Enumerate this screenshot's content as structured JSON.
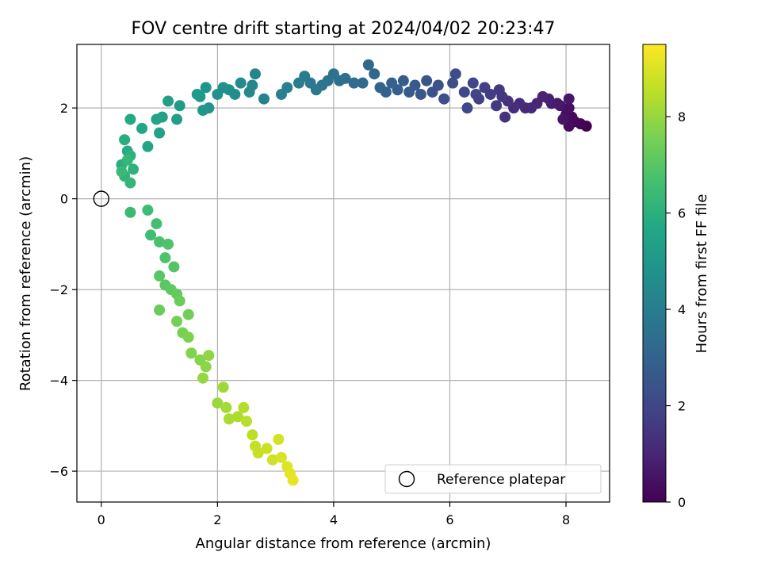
{
  "chart_data": {
    "type": "scatter",
    "title": "FOV centre drift starting at 2024/04/02 20:23:47",
    "xlabel": "Angular distance from reference (arcmin)",
    "ylabel": "Rotation from reference (arcmin)",
    "xlim": [
      -0.42,
      8.75
    ],
    "ylim": [
      -6.68,
      3.4
    ],
    "xticks": [
      0,
      2,
      4,
      6,
      8
    ],
    "xtick_labels": [
      "0",
      "2",
      "4",
      "6",
      "8"
    ],
    "yticks": [
      2,
      0,
      -2,
      -4,
      -6
    ],
    "ytick_labels": [
      "2",
      "0",
      "−2",
      "−4",
      "−6"
    ],
    "grid": true,
    "colormap": "viridis",
    "colorbar": {
      "label": "Hours from first FF file",
      "range": [
        0,
        9.5
      ],
      "ticks": [
        0,
        2,
        4,
        6,
        8
      ],
      "tick_labels": [
        "0",
        "2",
        "4",
        "6",
        "8"
      ]
    },
    "legend": {
      "position": "bottom-right",
      "entries": [
        "Reference platepar"
      ]
    },
    "reference_point": {
      "x": 0,
      "y": 0,
      "label": "Reference platepar"
    },
    "series": [
      {
        "color_by": "hours",
        "points": [
          [
            8.35,
            1.6,
            0.0
          ],
          [
            8.25,
            1.65,
            0.07
          ],
          [
            8.15,
            1.7,
            0.14
          ],
          [
            8.1,
            1.8,
            0.21
          ],
          [
            8.05,
            1.6,
            0.28
          ],
          [
            8.0,
            1.85,
            0.35
          ],
          [
            8.05,
            2.0,
            0.42
          ],
          [
            7.95,
            1.75,
            0.49
          ],
          [
            7.9,
            2.05,
            0.56
          ],
          [
            8.05,
            2.2,
            0.63
          ],
          [
            7.85,
            2.1,
            0.7
          ],
          [
            7.75,
            2.1,
            0.77
          ],
          [
            7.7,
            2.2,
            0.84
          ],
          [
            7.6,
            2.25,
            0.91
          ],
          [
            7.5,
            2.1,
            0.98
          ],
          [
            7.4,
            2.0,
            1.05
          ],
          [
            7.3,
            2.0,
            1.12
          ],
          [
            7.2,
            2.1,
            1.19
          ],
          [
            7.1,
            2.0,
            1.26
          ],
          [
            7.0,
            2.15,
            1.33
          ],
          [
            6.95,
            1.8,
            1.4
          ],
          [
            6.9,
            2.25,
            1.47
          ],
          [
            6.85,
            2.4,
            1.54
          ],
          [
            6.8,
            2.05,
            1.61
          ],
          [
            6.7,
            2.3,
            1.68
          ],
          [
            6.6,
            2.45,
            1.75
          ],
          [
            6.5,
            2.2,
            1.82
          ],
          [
            6.45,
            2.3,
            1.89
          ],
          [
            6.4,
            2.55,
            1.96
          ],
          [
            6.3,
            2.0,
            2.03
          ],
          [
            6.25,
            2.35,
            2.1
          ],
          [
            6.1,
            2.75,
            2.17
          ],
          [
            6.05,
            2.55,
            2.24
          ],
          [
            5.9,
            2.2,
            2.31
          ],
          [
            5.8,
            2.5,
            2.38
          ],
          [
            5.7,
            2.35,
            2.45
          ],
          [
            5.6,
            2.6,
            2.52
          ],
          [
            5.5,
            2.3,
            2.59
          ],
          [
            5.4,
            2.5,
            2.66
          ],
          [
            5.3,
            2.35,
            2.73
          ],
          [
            5.2,
            2.6,
            2.8
          ],
          [
            5.1,
            2.4,
            2.87
          ],
          [
            5.0,
            2.55,
            2.94
          ],
          [
            4.9,
            2.35,
            3.01
          ],
          [
            4.8,
            2.45,
            3.08
          ],
          [
            4.7,
            2.75,
            3.15
          ],
          [
            4.6,
            2.95,
            3.22
          ],
          [
            4.5,
            2.55,
            3.29
          ],
          [
            4.35,
            2.55,
            3.36
          ],
          [
            4.2,
            2.65,
            3.43
          ],
          [
            4.1,
            2.6,
            3.5
          ],
          [
            4.0,
            2.75,
            3.57
          ],
          [
            3.9,
            2.6,
            3.64
          ],
          [
            3.8,
            2.5,
            3.71
          ],
          [
            3.7,
            2.4,
            3.78
          ],
          [
            3.6,
            2.55,
            3.85
          ],
          [
            3.5,
            2.7,
            3.92
          ],
          [
            3.4,
            2.55,
            3.99
          ],
          [
            3.2,
            2.45,
            4.06
          ],
          [
            3.1,
            2.3,
            4.13
          ],
          [
            2.8,
            2.2,
            4.2
          ],
          [
            2.65,
            2.75,
            4.27
          ],
          [
            2.6,
            2.5,
            4.34
          ],
          [
            2.55,
            2.35,
            4.41
          ],
          [
            2.4,
            2.55,
            4.48
          ],
          [
            2.3,
            2.3,
            4.55
          ],
          [
            2.2,
            2.4,
            4.62
          ],
          [
            2.1,
            2.45,
            4.69
          ],
          [
            2.0,
            2.3,
            4.76
          ],
          [
            1.85,
            2.0,
            4.83
          ],
          [
            1.8,
            2.45,
            4.9
          ],
          [
            1.75,
            1.95,
            4.97
          ],
          [
            1.7,
            2.25,
            5.04
          ],
          [
            1.65,
            2.3,
            5.11
          ],
          [
            1.35,
            2.05,
            5.18
          ],
          [
            1.3,
            1.75,
            5.25
          ],
          [
            1.15,
            2.15,
            5.32
          ],
          [
            1.05,
            1.8,
            5.39
          ],
          [
            1.0,
            1.45,
            5.46
          ],
          [
            0.95,
            1.75,
            5.53
          ],
          [
            0.8,
            1.15,
            5.6
          ],
          [
            0.7,
            1.55,
            5.67
          ],
          [
            0.5,
            1.75,
            5.74
          ],
          [
            0.45,
            1.05,
            5.81
          ],
          [
            0.4,
            1.3,
            5.88
          ],
          [
            0.35,
            0.75,
            5.95
          ],
          [
            0.5,
            0.95,
            6.02
          ],
          [
            0.55,
            0.65,
            6.09
          ],
          [
            0.4,
            0.5,
            6.16
          ],
          [
            0.5,
            0.35,
            6.23
          ],
          [
            0.45,
            0.85,
            6.3
          ],
          [
            0.35,
            0.6,
            6.37
          ],
          [
            0.5,
            -0.3,
            6.44
          ],
          [
            0.8,
            -0.25,
            6.51
          ],
          [
            0.85,
            -0.8,
            6.58
          ],
          [
            0.95,
            -0.55,
            6.65
          ],
          [
            1.0,
            -0.95,
            6.72
          ],
          [
            1.1,
            -1.3,
            6.79
          ],
          [
            1.15,
            -1.0,
            6.86
          ],
          [
            1.25,
            -1.5,
            6.93
          ],
          [
            1.0,
            -1.7,
            7.0
          ],
          [
            1.1,
            -1.9,
            7.07
          ],
          [
            1.2,
            -2.0,
            7.14
          ],
          [
            1.3,
            -2.1,
            7.21
          ],
          [
            1.0,
            -2.45,
            7.28
          ],
          [
            1.35,
            -2.25,
            7.35
          ],
          [
            1.5,
            -2.55,
            7.42
          ],
          [
            1.3,
            -2.7,
            7.49
          ],
          [
            1.4,
            -2.95,
            7.56
          ],
          [
            1.5,
            -3.05,
            7.63
          ],
          [
            1.55,
            -3.4,
            7.7
          ],
          [
            1.7,
            -3.55,
            7.77
          ],
          [
            1.8,
            -3.7,
            7.84
          ],
          [
            1.85,
            -3.45,
            7.91
          ],
          [
            1.75,
            -3.95,
            7.98
          ],
          [
            2.0,
            -4.5,
            8.05
          ],
          [
            2.1,
            -4.15,
            8.12
          ],
          [
            2.15,
            -4.6,
            8.19
          ],
          [
            2.2,
            -4.85,
            8.26
          ],
          [
            2.35,
            -4.8,
            8.33
          ],
          [
            2.45,
            -4.6,
            8.4
          ],
          [
            2.5,
            -4.9,
            8.47
          ],
          [
            2.6,
            -5.2,
            8.54
          ],
          [
            2.65,
            -5.45,
            8.61
          ],
          [
            2.7,
            -5.6,
            8.68
          ],
          [
            2.85,
            -5.5,
            8.75
          ],
          [
            2.95,
            -5.75,
            8.82
          ],
          [
            3.05,
            -5.3,
            8.89
          ],
          [
            3.1,
            -5.7,
            8.96
          ],
          [
            3.2,
            -5.9,
            9.03
          ],
          [
            3.25,
            -6.05,
            9.1
          ],
          [
            3.3,
            -6.2,
            9.17
          ]
        ]
      }
    ]
  }
}
